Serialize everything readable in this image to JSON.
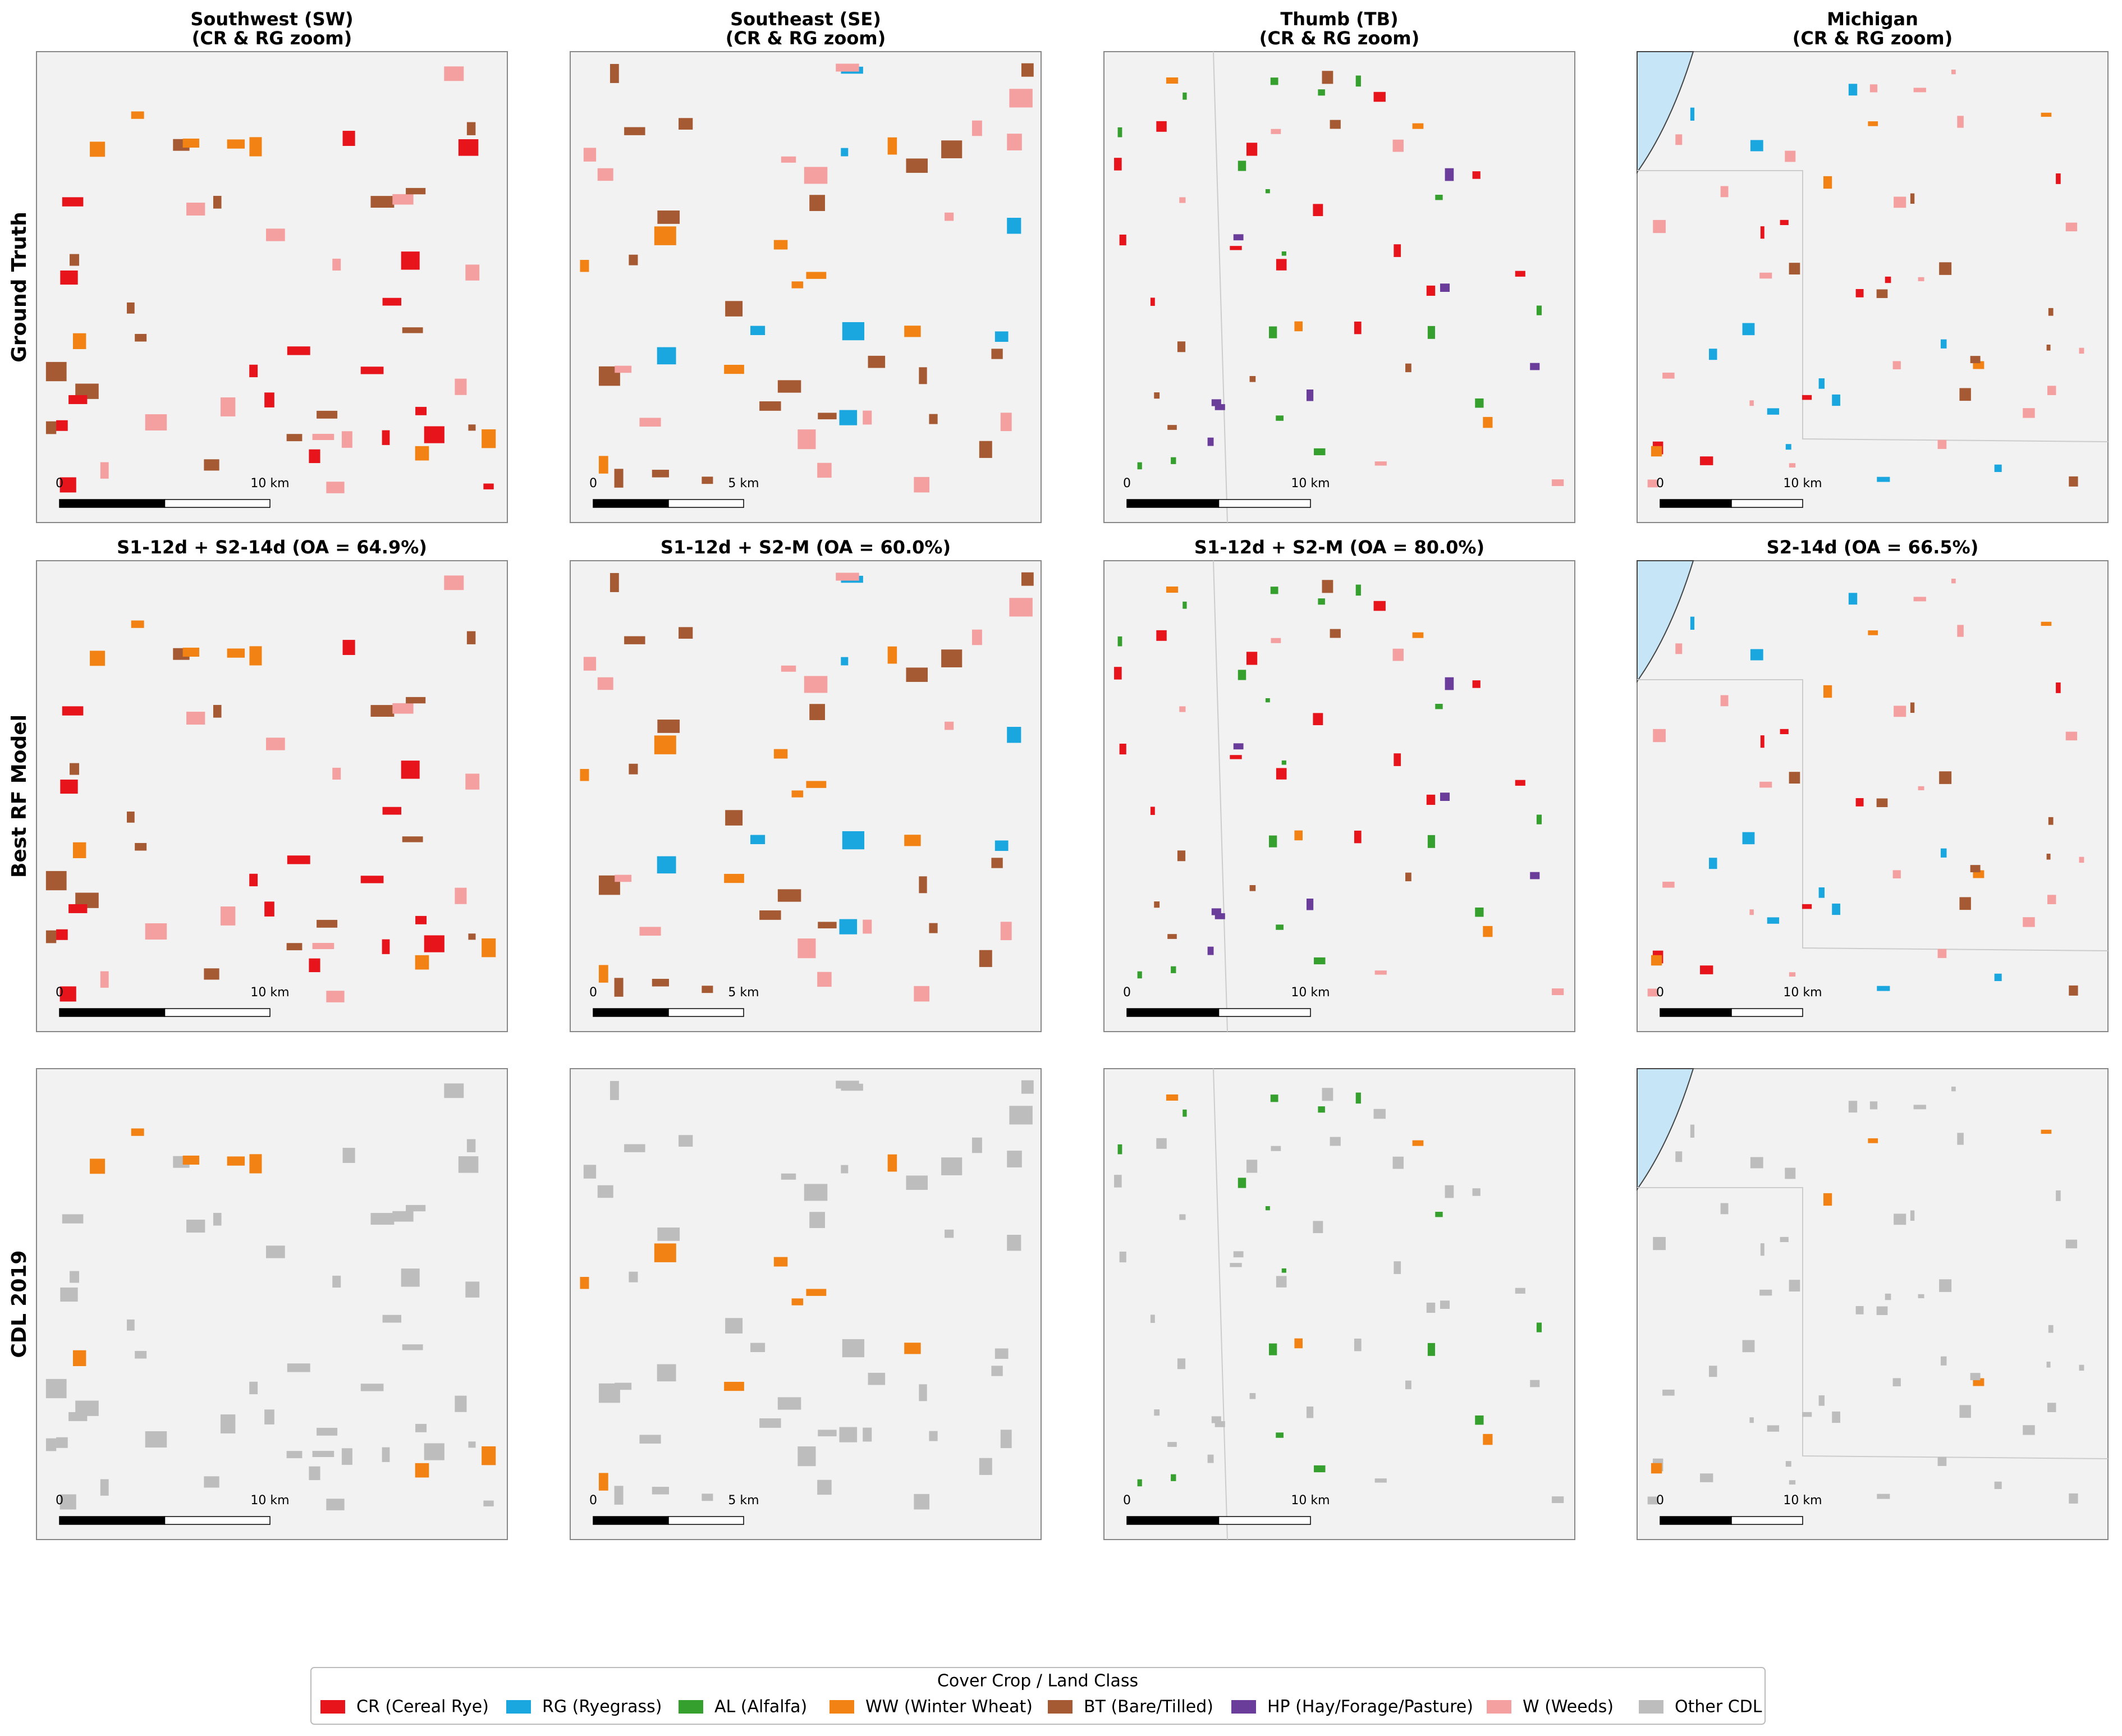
{
  "columns": [
    {
      "title": "Southwest (SW)",
      "subtitle": "(CR & RG zoom)",
      "scale_start": "0",
      "scale_end": "10 km"
    },
    {
      "title": "Southeast (SE)",
      "subtitle": "(CR & RG zoom)",
      "scale_start": "0",
      "scale_end": "5 km"
    },
    {
      "title": "Thumb (TB)",
      "subtitle": "(CR & RG zoom)",
      "scale_start": "0",
      "scale_end": "10 km"
    },
    {
      "title": "Michigan",
      "subtitle": "(CR & RG zoom)",
      "scale_start": "0",
      "scale_end": "10 km"
    }
  ],
  "rows": [
    {
      "label": "Ground Truth"
    },
    {
      "label": "Best RF Model",
      "panel_titles": [
        "S1-12d + S2-14d  (OA = 64.9%)",
        "S1-12d + S2-M  (OA = 60.0%)",
        "S1-12d + S2-M  (OA = 80.0%)",
        "S2-14d  (OA = 66.5%)"
      ]
    },
    {
      "label": "CDL 2019"
    }
  ],
  "legend": {
    "title": "Cover Crop / Land Class",
    "items": [
      {
        "label": "CR  (Cereal Rye)",
        "color": "#e8141c"
      },
      {
        "label": "RG  (Ryegrass)",
        "color": "#1aa7e0"
      },
      {
        "label": "AL  (Alfalfa)",
        "color": "#36a02e"
      },
      {
        "label": "WW  (Winter Wheat)",
        "color": "#f28213"
      },
      {
        "label": "BT  (Bare/Tilled)",
        "color": "#a55a33"
      },
      {
        "label": "HP  (Hay/Forage/Pasture)",
        "color": "#6a3d9a"
      },
      {
        "label": "W   (Weeds)",
        "color": "#f5a0a0"
      },
      {
        "label": "Other CDL",
        "color": "#bdbdbd"
      }
    ]
  }
}
